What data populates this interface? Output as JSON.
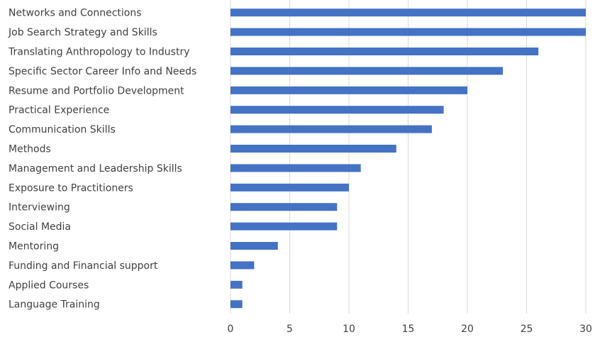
{
  "chart_data": {
    "type": "bar",
    "orientation": "horizontal",
    "title": "",
    "xlabel": "",
    "ylabel": "",
    "categories": [
      "Networks and Connections",
      "Job Search Strategy and Skills",
      "Translating Anthropology to Industry",
      "Specific Sector Career Info and Needs",
      "Resume and Portfolio Development",
      "Practical Experience",
      "Communication Skills",
      "Methods",
      "Management and Leadership Skills",
      "Exposure to Practitioners",
      "Interviewing",
      "Social Media",
      "Mentoring",
      "Funding and Financial support",
      "Applied Courses",
      "Language Training"
    ],
    "values": [
      30,
      30,
      26,
      23,
      20,
      18,
      17,
      14,
      11,
      10,
      9,
      9,
      4,
      2,
      1,
      1
    ],
    "xlim": [
      0,
      30
    ],
    "xticks": [
      "0",
      "5",
      "10",
      "15",
      "20",
      "25",
      "30"
    ],
    "grid": true,
    "legend": "none",
    "bar_color": "#4472c4"
  }
}
